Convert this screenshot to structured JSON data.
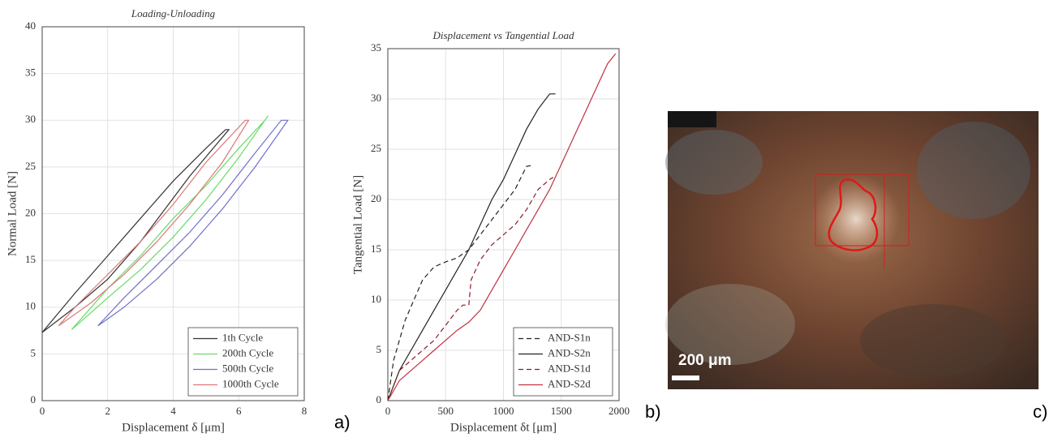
{
  "chart_data": [
    {
      "type": "line",
      "title": "Loading-Unloading",
      "x_label": "Displacement δ [μm]",
      "y_label": "Normal Load [N]",
      "xlim": [
        0,
        8
      ],
      "xticks": [
        0,
        2,
        4,
        6,
        8
      ],
      "ylim": [
        0,
        40
      ],
      "yticks": [
        0,
        5,
        10,
        15,
        20,
        25,
        30,
        35,
        40
      ],
      "grid": true,
      "legend": "lower right",
      "series": [
        {
          "name": "1th Cycle",
          "color": "#333333",
          "line_style": "solid",
          "x": [
            0,
            1,
            2,
            3,
            4,
            5,
            5.6,
            5.7,
            4.5,
            3,
            2,
            1,
            0
          ],
          "values": [
            7.3,
            11.5,
            15.5,
            19.5,
            23.5,
            27,
            29,
            29,
            24,
            17,
            13,
            10,
            7.3
          ]
        },
        {
          "name": "200th Cycle",
          "color": "#66dd66",
          "line_style": "solid",
          "x": [
            0.9,
            2,
            3,
            4,
            5,
            6,
            6.9,
            6.8,
            6,
            5,
            4,
            3,
            2,
            0.9
          ],
          "values": [
            7.6,
            11,
            14,
            17.5,
            21.5,
            26,
            30.5,
            30,
            27,
            23,
            19.5,
            15.5,
            12,
            7.6
          ]
        },
        {
          "name": "500th Cycle",
          "color": "#7070cc",
          "line_style": "solid",
          "x": [
            1.7,
            2.5,
            3.5,
            4.5,
            5.5,
            6.5,
            7.5,
            7.3,
            6.5,
            5.5,
            4.5,
            3.5,
            2.5,
            1.7
          ],
          "values": [
            8,
            10,
            13,
            16.5,
            20.5,
            25,
            30,
            30,
            26.5,
            22,
            18,
            14.5,
            11,
            8
          ]
        },
        {
          "name": "1000th Cycle",
          "color": "#dd7777",
          "line_style": "solid",
          "x": [
            0.5,
            1.5,
            2.5,
            3.5,
            4.5,
            5.5,
            6.3,
            6.2,
            5,
            4,
            3,
            2,
            1,
            0.5
          ],
          "values": [
            8,
            10.5,
            13.5,
            17,
            21,
            25.5,
            30,
            30,
            25.5,
            21,
            17,
            13.5,
            10,
            8
          ]
        }
      ]
    },
    {
      "type": "line",
      "title": "Displacement vs Tangential Load",
      "x_label": "Displacement δt [μm]",
      "y_label": "Tangential Load [N]",
      "xlim": [
        0,
        2000
      ],
      "xticks": [
        0,
        500,
        1000,
        1500,
        2000
      ],
      "ylim": [
        0,
        35
      ],
      "yticks": [
        0,
        5,
        10,
        15,
        20,
        25,
        30,
        35
      ],
      "grid": true,
      "legend": "lower right",
      "series": [
        {
          "name": "AND-S1n",
          "color": "#222222",
          "line_style": "dashed",
          "x": [
            0,
            50,
            150,
            300,
            400,
            500,
            600,
            700,
            800,
            900,
            1000,
            1100,
            1200,
            1250
          ],
          "values": [
            0,
            4,
            8,
            12,
            13.3,
            13.8,
            14.2,
            15,
            16.5,
            18,
            19.5,
            21,
            23.3,
            23.4
          ]
        },
        {
          "name": "AND-S2n",
          "color": "#222222",
          "line_style": "solid",
          "x": [
            0,
            100,
            200,
            300,
            400,
            500,
            600,
            700,
            800,
            900,
            1000,
            1100,
            1200,
            1300,
            1400,
            1450
          ],
          "values": [
            0,
            3,
            5,
            7,
            9,
            11,
            13,
            15,
            17.5,
            20,
            22,
            24.5,
            27,
            29,
            30.5,
            30.5
          ]
        },
        {
          "name": "AND-S1d",
          "color": "#8b1a2a",
          "line_style": "dashed",
          "x": [
            0,
            100,
            200,
            300,
            400,
            500,
            600,
            650,
            700,
            720,
            800,
            900,
            1000,
            1100,
            1200,
            1300,
            1400,
            1430
          ],
          "values": [
            0,
            3,
            4,
            5,
            6,
            7.5,
            9,
            9.5,
            9.5,
            12,
            14,
            15.5,
            16.5,
            17.5,
            19,
            21,
            22,
            22.2
          ]
        },
        {
          "name": "AND-S2d",
          "color": "#c03040",
          "line_style": "solid",
          "x": [
            0,
            100,
            200,
            300,
            400,
            500,
            600,
            700,
            800,
            900,
            1000,
            1100,
            1200,
            1300,
            1400,
            1500,
            1600,
            1700,
            1800,
            1900,
            1970
          ],
          "values": [
            0,
            2,
            3,
            4,
            5,
            6,
            7,
            7.8,
            9,
            11,
            13,
            15,
            17,
            19,
            21,
            23.5,
            26,
            28.5,
            31,
            33.5,
            34.5
          ]
        }
      ]
    }
  ],
  "image": {
    "scale_label": "200 μm"
  },
  "panel_labels": [
    "a)",
    "b)",
    "c)"
  ]
}
